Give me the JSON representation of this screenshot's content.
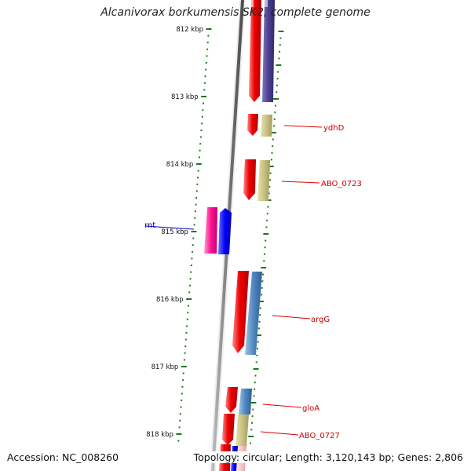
{
  "title": "Alcanivorax borkumensis SK2, complete genome",
  "footer": {
    "accession": "Accession: NC_008260",
    "summary": "Topology: circular; Length: 3,120,143 bp; Genes: 2,806"
  },
  "colors": {
    "backbone": "#808080",
    "tick": "#1a7a1a",
    "forward_cds": "#ee0000",
    "label_red": "#cc0000",
    "label_blue": "#00008b"
  },
  "tick_labels": [
    "812 kbp",
    "813 kbp",
    "814 kbp",
    "815 kbp",
    "816 kbp",
    "817 kbp",
    "818 kbp"
  ],
  "genes": [
    {
      "name": "ydhD",
      "strand": "+"
    },
    {
      "name": "ABO_0723",
      "strand": "+"
    },
    {
      "name": "rnt",
      "strand": "-"
    },
    {
      "name": "argG",
      "strand": "+"
    },
    {
      "name": "gloA",
      "strand": "+"
    },
    {
      "name": "ABO_0727",
      "strand": "+"
    }
  ]
}
